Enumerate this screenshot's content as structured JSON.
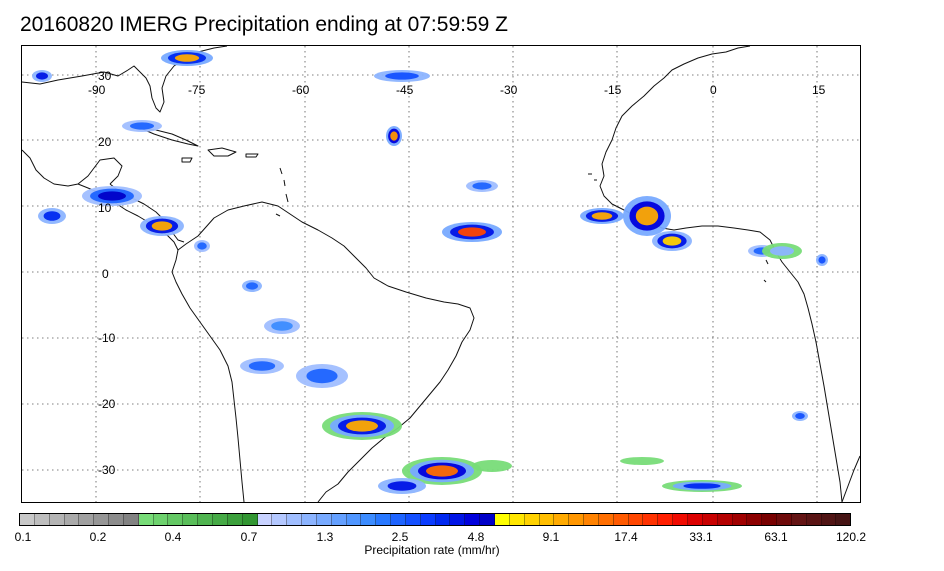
{
  "title": "20160820 IMERG Precipitation ending at 07:59:59 Z",
  "map": {
    "region": "Tropical Atlantic, South America and West Africa",
    "lon_labels": [
      "-90",
      "-75",
      "-60",
      "-45",
      "-30",
      "-15",
      "0",
      "15"
    ],
    "lat_labels": [
      "30",
      "20",
      "10",
      "0",
      "-10",
      "-20",
      "-30"
    ],
    "grid": "dotted"
  },
  "colorbar": {
    "label": "Precipitation rate (mm/hr)",
    "ticks": [
      "0.1",
      "0.2",
      "0.4",
      "0.7",
      "1.3",
      "2.5",
      "4.8",
      "9.1",
      "17.4",
      "33.1",
      "63.1",
      "120.2"
    ],
    "colors": [
      "#c8c8c8",
      "#bebebe",
      "#b4b4b4",
      "#aaaaaa",
      "#a0a0a0",
      "#969696",
      "#8c8c8c",
      "#828282",
      "#78dc78",
      "#6ed26e",
      "#64c864",
      "#5abe5a",
      "#50b450",
      "#46aa46",
      "#3ca03c",
      "#329632",
      "#c8d2ff",
      "#b4c8ff",
      "#a0beff",
      "#8cb4ff",
      "#78aaff",
      "#64a0ff",
      "#5096ff",
      "#3c8cff",
      "#2878ff",
      "#1e64ff",
      "#1450ff",
      "#0a3cff",
      "#0028f0",
      "#0014e6",
      "#0000dc",
      "#0000c8",
      "#ffff00",
      "#ffe600",
      "#ffd200",
      "#ffbe00",
      "#ffaa00",
      "#ff9600",
      "#ff8200",
      "#ff6e00",
      "#ff5a00",
      "#ff4600",
      "#ff3200",
      "#ff1e00",
      "#f00a00",
      "#dc0000",
      "#c80000",
      "#b40000",
      "#a00000",
      "#8c0000",
      "#780000",
      "#6e0a0a",
      "#641414",
      "#5a1414",
      "#501414",
      "#461414"
    ]
  }
}
